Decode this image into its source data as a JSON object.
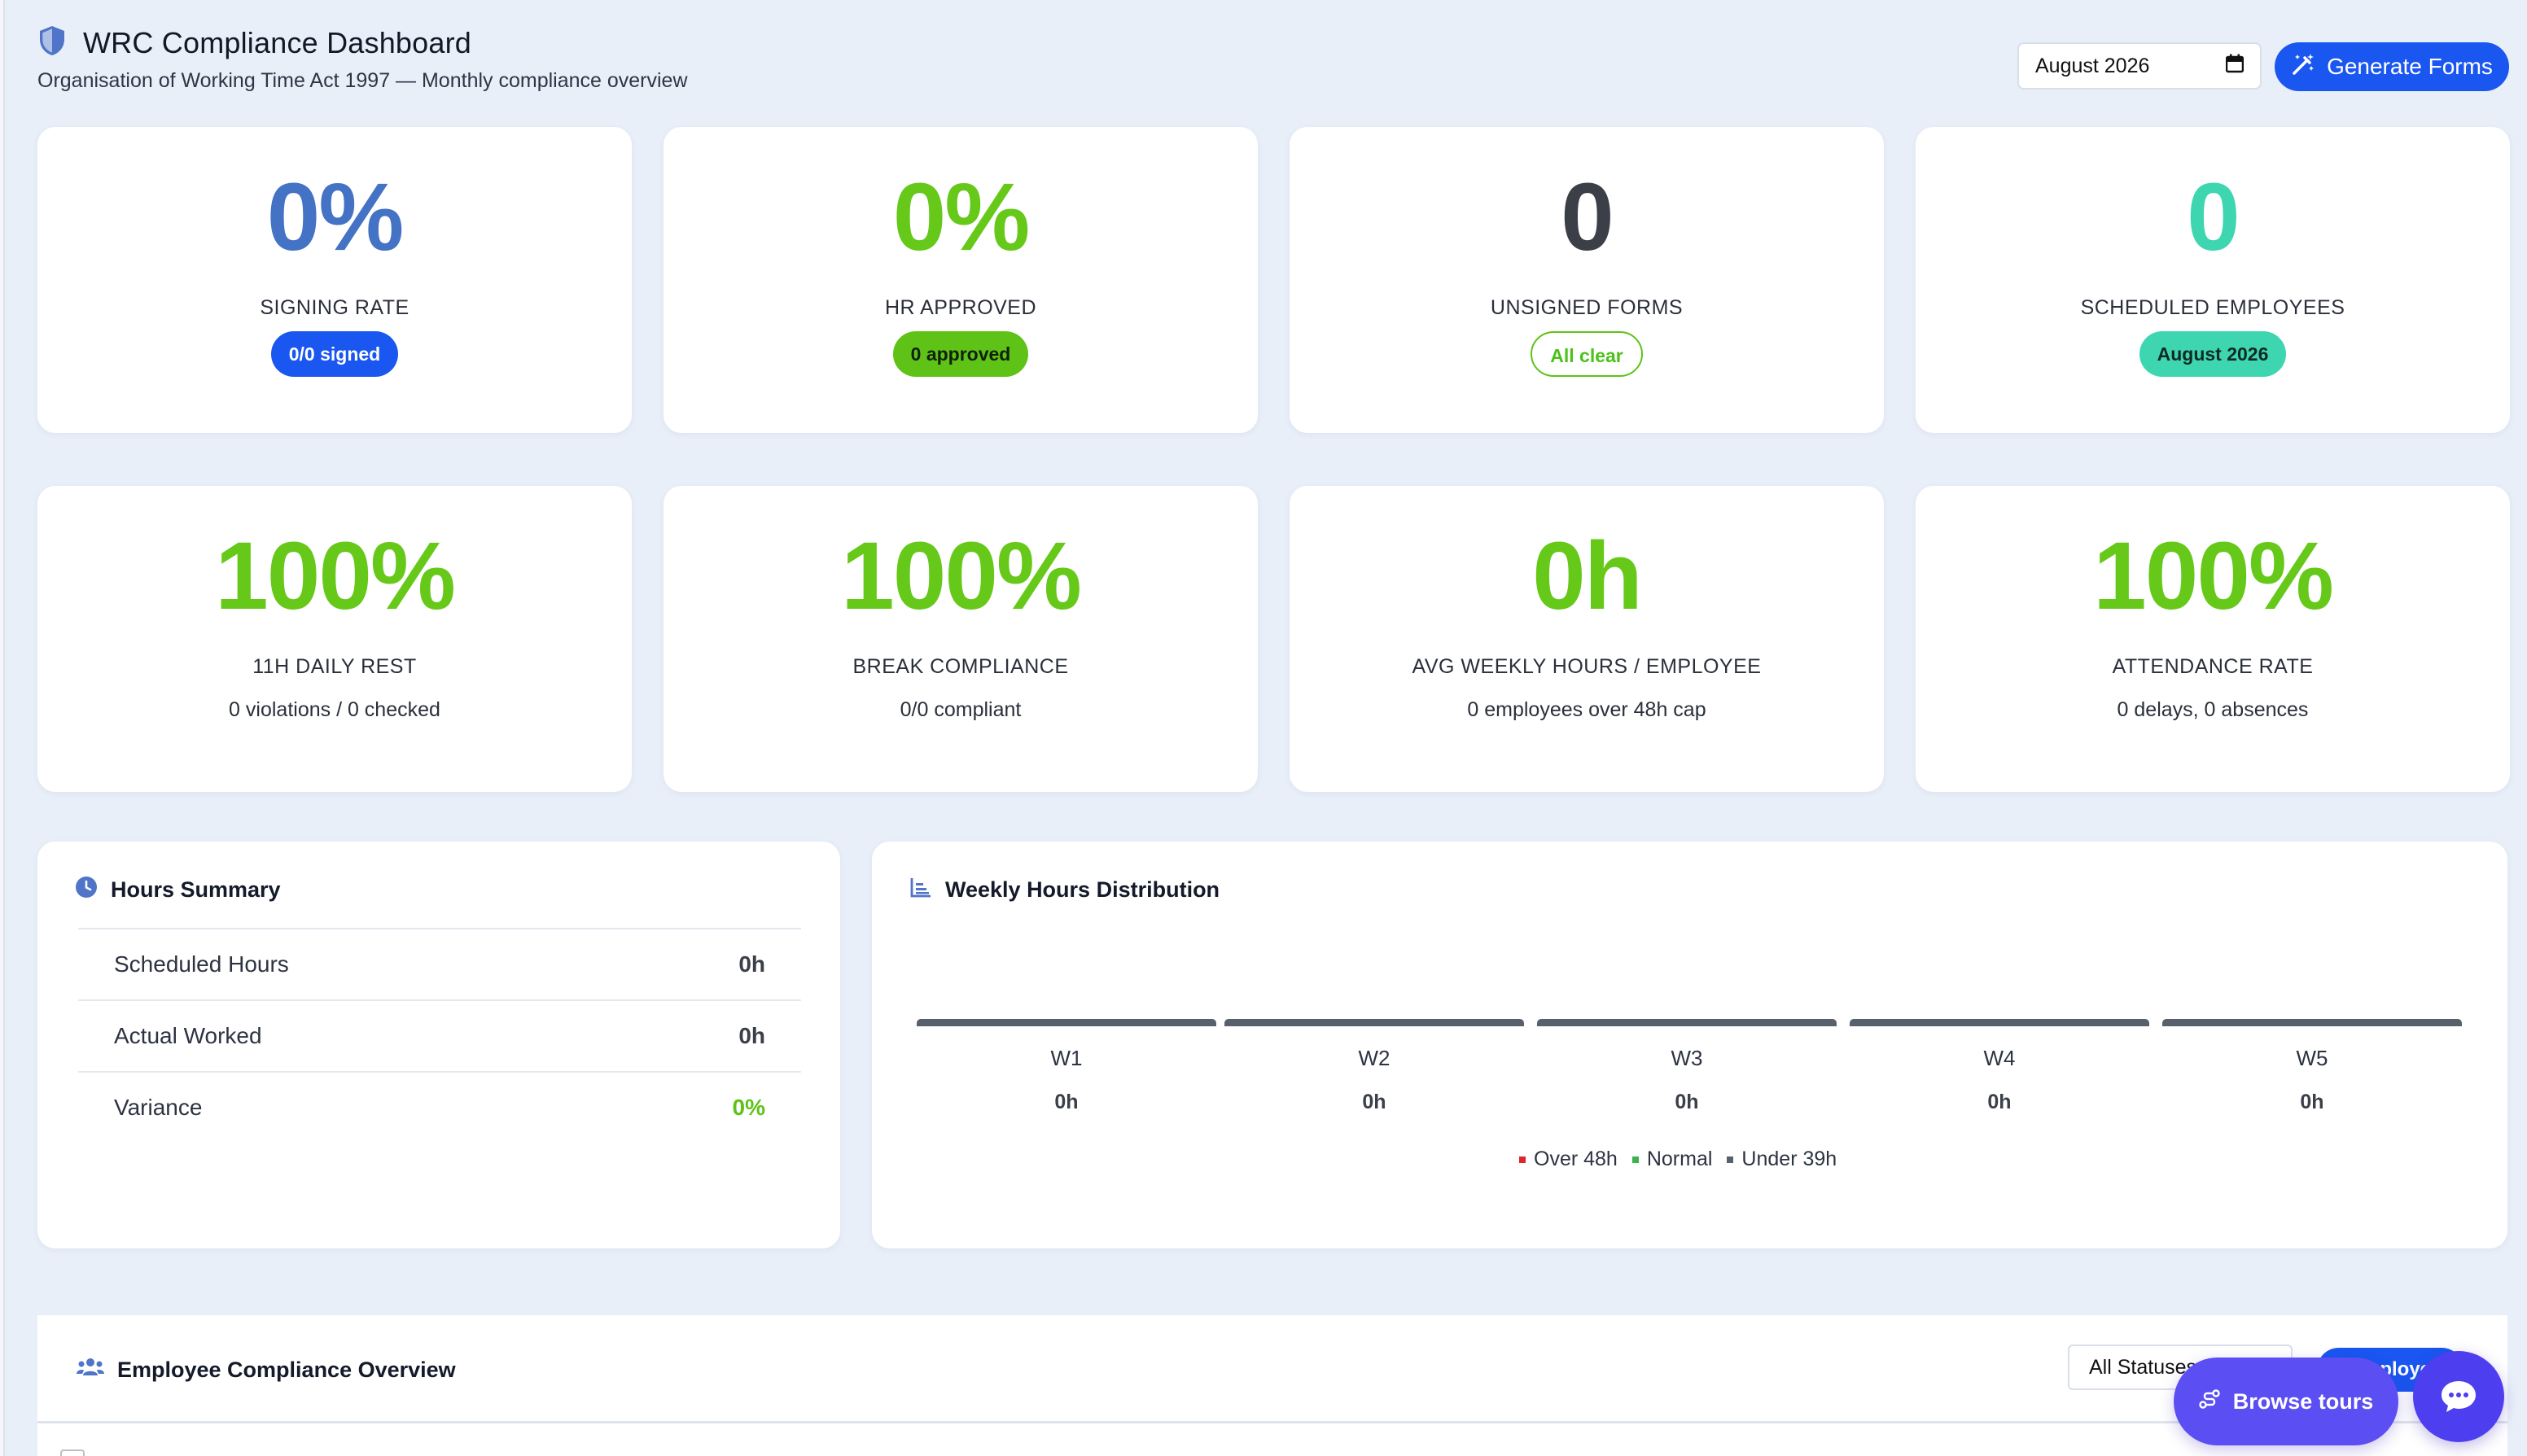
{
  "header": {
    "title": "WRC Compliance Dashboard",
    "subtitle": "Organisation of Working Time Act 1997 — Monthly compliance overview",
    "icon": "shield-icon",
    "month_value": "August 2026",
    "generate_label": "Generate Forms"
  },
  "stats_top": [
    {
      "value": "0%",
      "label": "SIGNING RATE",
      "badge": "0/0 signed",
      "color": "#4472c4"
    },
    {
      "value": "0%",
      "label": "HR APPROVED",
      "badge": "0 approved",
      "color": "#66c91a"
    },
    {
      "value": "0",
      "label": "UNSIGNED FORMS",
      "badge": "All clear",
      "color": "#3b3f47"
    },
    {
      "value": "0",
      "label": "SCHEDULED EMPLOYEES",
      "badge": "August 2026",
      "color": "#3dd6b1"
    }
  ],
  "stats_bottom": [
    {
      "value": "100%",
      "label": "11H DAILY REST",
      "sub": "0 violations / 0 checked"
    },
    {
      "value": "100%",
      "label": "BREAK COMPLIANCE",
      "sub": "0/0 compliant"
    },
    {
      "value": "0h",
      "label": "AVG WEEKLY HOURS / EMPLOYEE",
      "sub": "0 employees over 48h cap"
    },
    {
      "value": "100%",
      "label": "ATTENDANCE RATE",
      "sub": "0 delays, 0 absences"
    }
  ],
  "hours_summary": {
    "title": "Hours Summary",
    "rows": [
      {
        "label": "Scheduled Hours",
        "value": "0h"
      },
      {
        "label": "Actual Worked",
        "value": "0h"
      },
      {
        "label": "Variance",
        "value": "0%"
      }
    ]
  },
  "weekly": {
    "title": "Weekly Hours Distribution",
    "weeks": [
      {
        "label": "W1",
        "value": "0h"
      },
      {
        "label": "W2",
        "value": "0h"
      },
      {
        "label": "W3",
        "value": "0h"
      },
      {
        "label": "W4",
        "value": "0h"
      },
      {
        "label": "W5",
        "value": "0h"
      }
    ],
    "legend": [
      {
        "label": "Over 48h",
        "color": "#e0242c"
      },
      {
        "label": "Normal",
        "color": "#3cb34a"
      },
      {
        "label": "Under 39h",
        "color": "#585f6d"
      }
    ]
  },
  "employee_overview": {
    "title": "Employee Compliance Overview",
    "status_filter": "All Statuses",
    "action_label": "Employe",
    "browse_tours": "Browse tours"
  }
}
